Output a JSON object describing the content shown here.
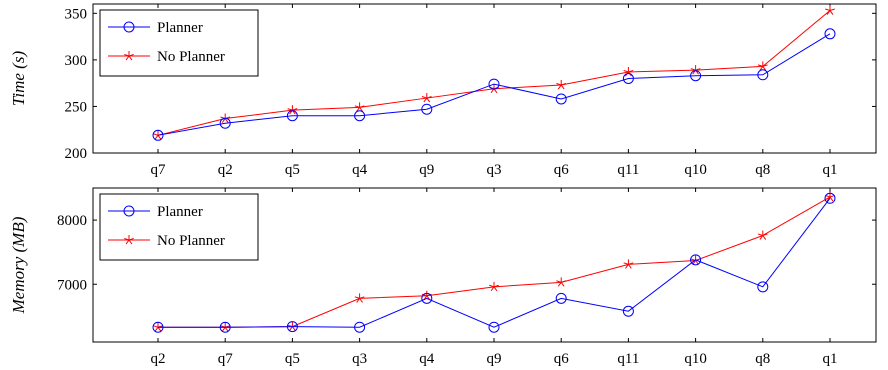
{
  "chart_data": [
    {
      "type": "line",
      "categories": [
        "q7",
        "q2",
        "q5",
        "q4",
        "q9",
        "q3",
        "q6",
        "q11",
        "q10",
        "q8",
        "q1"
      ],
      "ylabel": "Time (s)",
      "ylim": [
        200,
        360
      ],
      "yticks": [
        200,
        250,
        300,
        350
      ],
      "grid": false,
      "legend_position": "top-left",
      "series": [
        {
          "name": "Planner",
          "color": "#0000ff",
          "marker": "circle",
          "values": [
            219,
            232,
            240,
            240,
            247,
            274,
            258,
            280,
            283,
            284,
            328
          ]
        },
        {
          "name": "No Planner",
          "color": "#ff0000",
          "marker": "star",
          "values": [
            219,
            237,
            246,
            249,
            259,
            269,
            273,
            287,
            289,
            293,
            353
          ]
        }
      ]
    },
    {
      "type": "line",
      "categories": [
        "q2",
        "q7",
        "q5",
        "q3",
        "q4",
        "q9",
        "q6",
        "q11",
        "q10",
        "q8",
        "q1"
      ],
      "ylabel": "Memory (MB)",
      "ylim": [
        6100,
        8500
      ],
      "yticks": [
        7000,
        8000
      ],
      "grid": false,
      "legend_position": "top-left",
      "series": [
        {
          "name": "Planner",
          "color": "#0000ff",
          "marker": "circle",
          "values": [
            6330,
            6330,
            6340,
            6330,
            6780,
            6330,
            6780,
            6580,
            7380,
            6960,
            8340
          ]
        },
        {
          "name": "No Planner",
          "color": "#ff0000",
          "marker": "star",
          "values": [
            6330,
            6330,
            6340,
            6780,
            6820,
            6960,
            7030,
            7310,
            7370,
            7760,
            8360
          ]
        }
      ]
    }
  ]
}
